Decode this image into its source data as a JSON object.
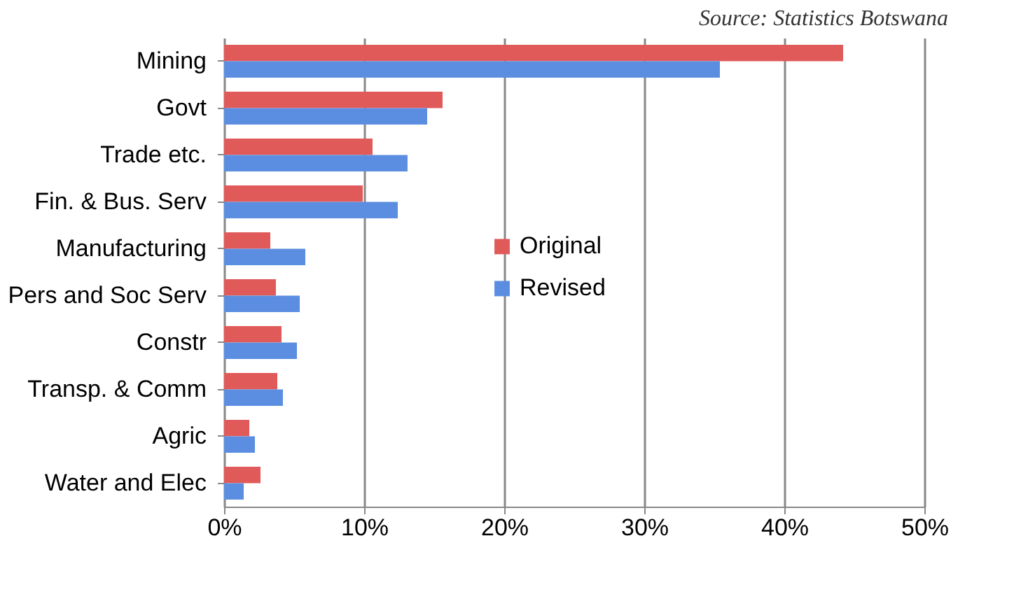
{
  "chart_data": {
    "type": "bar",
    "orientation": "horizontal",
    "annotations": [
      "Source: Statistics Botswana"
    ],
    "categories": [
      "Mining",
      "Govt",
      "Trade etc.",
      "Fin. & Bus. Serv",
      "Manufacturing",
      "Pers and Soc Serv",
      "Constr",
      "Transp. & Comm",
      "Agric ",
      "Water and  Elec"
    ],
    "series": [
      {
        "name": "Original",
        "color": "#e05a5a",
        "values": [
          44.2,
          15.6,
          10.6,
          9.9,
          3.3,
          3.7,
          4.1,
          3.8,
          1.8,
          2.6
        ]
      },
      {
        "name": "Revised",
        "color": "#5b8ee0",
        "values": [
          35.4,
          14.5,
          13.1,
          12.4,
          5.8,
          5.4,
          5.2,
          4.2,
          2.2,
          1.4
        ]
      }
    ],
    "xlim": [
      0,
      50
    ],
    "xticks": [
      {
        "value": 0,
        "label": "0%"
      },
      {
        "value": 10,
        "label": "10%"
      },
      {
        "value": 20,
        "label": "20%"
      },
      {
        "value": 30,
        "label": "30%"
      },
      {
        "value": 40,
        "label": "40%"
      },
      {
        "value": 50,
        "label": "50%"
      }
    ],
    "grid": "x",
    "legend": "right"
  }
}
